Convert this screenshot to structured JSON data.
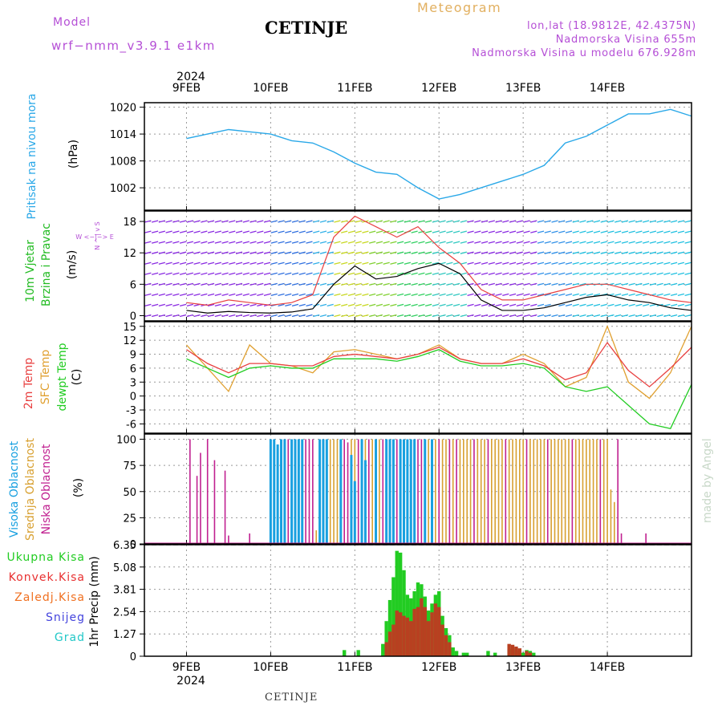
{
  "header": {
    "model_label": "Model",
    "model_run": "wrf−nmm_v3.9.1  e1km",
    "city": "CETINJE",
    "meteogram": "Meteogram",
    "lonlat": "lon,lat (18.9812E, 42.4375N)",
    "elevation": "Nadmorska Visina 655m",
    "model_elevation": "Nadmorska Visina u modelu 676.928m"
  },
  "footer": {
    "city": "CETINJE",
    "watermark": "made by Angel"
  },
  "time_axis": {
    "year": "2024",
    "days": [
      "9FEB",
      "10FEB",
      "11FEB",
      "12FEB",
      "13FEB",
      "14FEB"
    ]
  },
  "colors": {
    "pressure": "#2aa8e8",
    "wind_label": "#22bb22",
    "temp2m": "#e84040",
    "sfc_temp": "#e0a030",
    "dewpoint": "#22cc22",
    "cloud_high": "#18a0e0",
    "cloud_mid": "#d8a030",
    "cloud_low": "#c02090",
    "precip_total": "#22cc22",
    "precip_conv": "#e83030",
    "precip_frozen": "#f07020",
    "precip_snow": "#4444dd",
    "precip_hail": "#22c8c8",
    "purple": "#b54fd6"
  },
  "chart_data": [
    {
      "type": "line",
      "name": "pressure",
      "ylabel_main": "Pritisak na nivou mora",
      "ylabel_unit": "(hPa)",
      "yticks": [
        1002,
        1008,
        1014,
        1020
      ],
      "ylim": [
        997,
        1021
      ],
      "grid": true,
      "x_hours": [
        0,
        6,
        12,
        18,
        24,
        30,
        36,
        42,
        48,
        54,
        60,
        66,
        72,
        78,
        84,
        90,
        96,
        102,
        108,
        114,
        120,
        126,
        132,
        138,
        144
      ],
      "series": [
        {
          "values": [
            1013,
            1014,
            1015,
            1014.5,
            1014,
            1012.5,
            1012,
            1010,
            1007.5,
            1005.5,
            1005,
            1002,
            999.5,
            1000.5,
            1002,
            1003.5,
            1005,
            1007,
            1012,
            1013.5,
            1016,
            1018.5,
            1018.5,
            1019.5,
            1018
          ]
        }
      ]
    },
    {
      "type": "line",
      "name": "wind",
      "ylabel_main": "10m Vjetar",
      "ylabel_sub": "Brzina i Pravac",
      "ylabel_unit": "(m/s)",
      "compass": "W <−|−> E",
      "compass_v": "N ^ | v S",
      "yticks": [
        0,
        6,
        12,
        18
      ],
      "ylim": [
        -1,
        20
      ],
      "grid": true,
      "x_hours": [
        0,
        6,
        12,
        18,
        24,
        30,
        36,
        42,
        48,
        54,
        60,
        66,
        72,
        78,
        84,
        90,
        96,
        102,
        108,
        114,
        120,
        126,
        132,
        138,
        144
      ],
      "series": [
        {
          "name": "speed",
          "values": [
            1,
            0.5,
            0.8,
            0.6,
            0.5,
            0.7,
            1.3,
            6,
            9.5,
            7,
            7.5,
            9,
            10,
            8,
            3,
            1,
            1,
            1.5,
            2.5,
            3.5,
            4,
            3,
            2.5,
            1.5,
            1
          ]
        },
        {
          "name": "gust",
          "values": [
            2.5,
            2,
            3,
            2.5,
            2,
            2.5,
            4,
            15,
            19,
            17,
            15,
            17,
            13,
            10,
            5,
            3,
            3,
            4,
            5,
            6,
            6,
            5,
            4,
            3,
            2.5
          ]
        }
      ]
    },
    {
      "type": "line",
      "name": "temperature",
      "ylabel_lines": [
        "2m Temp",
        "SFC Temp",
        "dewpt Temp"
      ],
      "ylabel_unit": "(C)",
      "yticks": [
        -6,
        -3,
        0,
        3,
        6,
        9,
        12,
        15
      ],
      "ylim": [
        -8,
        16
      ],
      "grid": true,
      "x_hours": [
        0,
        6,
        12,
        18,
        24,
        30,
        36,
        42,
        48,
        54,
        60,
        66,
        72,
        78,
        84,
        90,
        96,
        102,
        108,
        114,
        120,
        126,
        132,
        138,
        144
      ],
      "series": [
        {
          "name": "2m Temp",
          "values": [
            10,
            7,
            5,
            7,
            7,
            6.5,
            6.5,
            8.5,
            9,
            8.5,
            8,
            9,
            10.5,
            8,
            7,
            7,
            8,
            6.5,
            3.5,
            5,
            11.5,
            5.5,
            2,
            6,
            10.5
          ]
        },
        {
          "name": "SFC Temp",
          "values": [
            11,
            6,
            1,
            11,
            7,
            6.5,
            5,
            9.5,
            10,
            9,
            8,
            9,
            11,
            8,
            7,
            7,
            9,
            7,
            2,
            4,
            15,
            3,
            -0.5,
            5,
            15
          ]
        },
        {
          "name": "dewpt Temp",
          "values": [
            8,
            6,
            4,
            6,
            6.5,
            6,
            6,
            8,
            8,
            8,
            7.5,
            8.5,
            10,
            7.5,
            6.5,
            6.5,
            7,
            6,
            2,
            1,
            2,
            -2,
            -6,
            -7,
            2.5
          ]
        }
      ]
    },
    {
      "type": "bar",
      "name": "clouds",
      "ylabel_lines": [
        "Visoka Oblacnost",
        "Srednja Oblacnost",
        "Niska Oblacnost"
      ],
      "ylabel_unit": "(%)",
      "yticks": [
        0,
        25,
        50,
        75,
        100
      ],
      "ylim": [
        0,
        105
      ],
      "grid": true,
      "series": [
        {
          "name": "Niska Oblacnost",
          "hours_values": [
            [
              1,
              100
            ],
            [
              3,
              65
            ],
            [
              4,
              87
            ],
            [
              6,
              100
            ],
            [
              8,
              80
            ],
            [
              11,
              70
            ],
            [
              12,
              8
            ],
            [
              18,
              10
            ],
            [
              29,
              100
            ],
            [
              34,
              100
            ],
            [
              35,
              100
            ],
            [
              36,
              100
            ],
            [
              45,
              100
            ],
            [
              46,
              97
            ],
            [
              49,
              100
            ],
            [
              52,
              100
            ],
            [
              56,
              100
            ],
            [
              60,
              100
            ],
            [
              66,
              100
            ],
            [
              67,
              100
            ],
            [
              72,
              100
            ],
            [
              75,
              100
            ],
            [
              77,
              100
            ],
            [
              82,
              100
            ],
            [
              86,
              100
            ],
            [
              91,
              100
            ],
            [
              97,
              100
            ],
            [
              103,
              100
            ],
            [
              110,
              100
            ],
            [
              118,
              100
            ],
            [
              123,
              100
            ],
            [
              124,
              10
            ],
            [
              131,
              10
            ]
          ]
        },
        {
          "name": "Srednja Oblacnost",
          "hours_values": [
            [
              37,
              13
            ],
            [
              41,
              100
            ],
            [
              42,
              100
            ],
            [
              43,
              100
            ],
            [
              44,
              100
            ],
            [
              47,
              100
            ],
            [
              48,
              100
            ],
            [
              50,
              100
            ],
            [
              51,
              100
            ],
            [
              53,
              100
            ],
            [
              54,
              100
            ],
            [
              55,
              100
            ],
            [
              57,
              100
            ],
            [
              58,
              100
            ],
            [
              59,
              100
            ],
            [
              61,
              100
            ],
            [
              62,
              100
            ],
            [
              63,
              100
            ],
            [
              64,
              100
            ],
            [
              65,
              100
            ],
            [
              68,
              100
            ],
            [
              69,
              100
            ],
            [
              70,
              100
            ],
            [
              71,
              100
            ],
            [
              73,
              100
            ],
            [
              74,
              100
            ],
            [
              76,
              100
            ],
            [
              78,
              100
            ],
            [
              79,
              100
            ],
            [
              80,
              100
            ],
            [
              81,
              100
            ],
            [
              83,
              100
            ],
            [
              84,
              100
            ],
            [
              85,
              100
            ],
            [
              87,
              100
            ],
            [
              88,
              100
            ],
            [
              89,
              100
            ],
            [
              90,
              100
            ],
            [
              92,
              100
            ],
            [
              93,
              100
            ],
            [
              94,
              100
            ],
            [
              95,
              100
            ],
            [
              96,
              100
            ],
            [
              98,
              100
            ],
            [
              99,
              100
            ],
            [
              100,
              100
            ],
            [
              101,
              100
            ],
            [
              102,
              100
            ],
            [
              104,
              100
            ],
            [
              105,
              100
            ],
            [
              106,
              100
            ],
            [
              107,
              100
            ],
            [
              108,
              100
            ],
            [
              109,
              100
            ],
            [
              111,
              100
            ],
            [
              112,
              100
            ],
            [
              113,
              100
            ],
            [
              114,
              100
            ],
            [
              115,
              100
            ],
            [
              116,
              100
            ],
            [
              117,
              100
            ],
            [
              119,
              100
            ],
            [
              120,
              100
            ],
            [
              121,
              52
            ],
            [
              122,
              40
            ]
          ]
        },
        {
          "name": "Visoka Oblacnost",
          "hours_values": [
            [
              24,
              100
            ],
            [
              25,
              100
            ],
            [
              26,
              95
            ],
            [
              27,
              100
            ],
            [
              28,
              100
            ],
            [
              30,
              100
            ],
            [
              31,
              100
            ],
            [
              32,
              100
            ],
            [
              33,
              100
            ],
            [
              38,
              100
            ],
            [
              39,
              100
            ],
            [
              40,
              100
            ],
            [
              44,
              100
            ],
            [
              47,
              85
            ],
            [
              48,
              60
            ],
            [
              50,
              100
            ],
            [
              51,
              80
            ],
            [
              54,
              100
            ],
            [
              57,
              100
            ],
            [
              58,
              100
            ],
            [
              59,
              100
            ],
            [
              61,
              100
            ],
            [
              62,
              100
            ],
            [
              63,
              100
            ],
            [
              64,
              100
            ],
            [
              65,
              100
            ],
            [
              68,
              100
            ],
            [
              70,
              100
            ]
          ]
        }
      ]
    },
    {
      "type": "bar",
      "name": "precipitation",
      "legend": [
        "Ukupna  Kisa",
        "Konvek.Kisa",
        "Zaledj.Kisa",
        "Snijeg",
        "Grad"
      ],
      "ylabel_unit": "1hr Precip (mm)",
      "yticks": [
        0,
        1.27,
        2.54,
        3.81,
        5.08,
        6.35
      ],
      "ylim": [
        0,
        6.35
      ],
      "grid": true,
      "series": [
        {
          "name": "Ukupna  Kisa",
          "hours_values": [
            [
              45,
              0.35
            ],
            [
              49,
              0.35
            ],
            [
              56,
              0.7
            ],
            [
              57,
              2.0
            ],
            [
              58,
              3.2
            ],
            [
              59,
              4.5
            ],
            [
              60,
              6.0
            ],
            [
              61,
              5.9
            ],
            [
              62,
              4.9
            ],
            [
              63,
              3.5
            ],
            [
              64,
              3.3
            ],
            [
              65,
              3.7
            ],
            [
              66,
              4.2
            ],
            [
              67,
              4.1
            ],
            [
              68,
              3.4
            ],
            [
              69,
              2.6
            ],
            [
              70,
              3.0
            ],
            [
              71,
              3.5
            ],
            [
              72,
              3.7
            ],
            [
              73,
              2.3
            ],
            [
              74,
              1.6
            ],
            [
              75,
              1.2
            ],
            [
              76,
              0.5
            ],
            [
              77,
              0.3
            ],
            [
              79,
              0.2
            ],
            [
              80,
              0.2
            ],
            [
              86,
              0.3
            ],
            [
              88,
              0.2
            ],
            [
              92,
              0.4
            ],
            [
              93,
              0.45
            ],
            [
              94,
              0.35
            ],
            [
              95,
              0.3
            ],
            [
              96,
              0.2
            ],
            [
              97,
              0.35
            ],
            [
              98,
              0.3
            ],
            [
              99,
              0.2
            ]
          ]
        },
        {
          "name": "Konvek.Kisa",
          "hours_values": [
            [
              57,
              0.8
            ],
            [
              58,
              1.4
            ],
            [
              59,
              1.8
            ],
            [
              60,
              2.6
            ],
            [
              61,
              2.5
            ],
            [
              62,
              2.3
            ],
            [
              63,
              2.2
            ],
            [
              64,
              2.0
            ],
            [
              65,
              2.7
            ],
            [
              66,
              2.8
            ],
            [
              67,
              3.3
            ],
            [
              68,
              2.8
            ],
            [
              69,
              2.0
            ],
            [
              70,
              2.5
            ],
            [
              71,
              3.0
            ],
            [
              72,
              2.8
            ],
            [
              73,
              1.8
            ],
            [
              74,
              1.2
            ],
            [
              75,
              0.8
            ],
            [
              92,
              0.7
            ],
            [
              93,
              0.65
            ],
            [
              94,
              0.55
            ],
            [
              95,
              0.45
            ],
            [
              97,
              0.3
            ],
            [
              98,
              0.2
            ]
          ]
        }
      ]
    }
  ]
}
